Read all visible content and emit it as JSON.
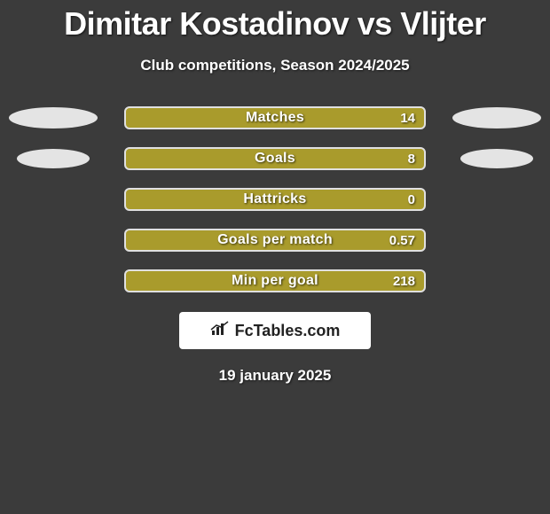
{
  "title": "Dimitar Kostadinov vs Vlijter",
  "subtitle": "Club competitions, Season 2024/2025",
  "date": "19 january 2025",
  "logo_text": "FcTables.com",
  "colors": {
    "background": "#3b3b3b",
    "bar_fill": "#a99b2c",
    "bar_border": "#e0e0e0",
    "oval": "#e4e4e4",
    "text": "#ffffff",
    "logo_bg": "#ffffff",
    "logo_fg": "#222222"
  },
  "rows": [
    {
      "label": "Matches",
      "value": "14",
      "left_oval_w": 100,
      "left_oval_h": 24,
      "right_oval_w": 100,
      "right_oval_h": 24,
      "show_left": true,
      "show_right": true
    },
    {
      "label": "Goals",
      "value": "8",
      "left_oval_w": 82,
      "left_oval_h": 22,
      "right_oval_w": 82,
      "right_oval_h": 22,
      "show_left": true,
      "show_right": true
    },
    {
      "label": "Hattricks",
      "value": "0",
      "left_oval_w": 0,
      "left_oval_h": 0,
      "right_oval_w": 0,
      "right_oval_h": 0,
      "show_left": false,
      "show_right": false
    },
    {
      "label": "Goals per match",
      "value": "0.57",
      "left_oval_w": 0,
      "left_oval_h": 0,
      "right_oval_w": 0,
      "right_oval_h": 0,
      "show_left": false,
      "show_right": false
    },
    {
      "label": "Min per goal",
      "value": "218",
      "left_oval_w": 0,
      "left_oval_h": 0,
      "right_oval_w": 0,
      "right_oval_h": 0,
      "show_left": false,
      "show_right": false
    }
  ]
}
